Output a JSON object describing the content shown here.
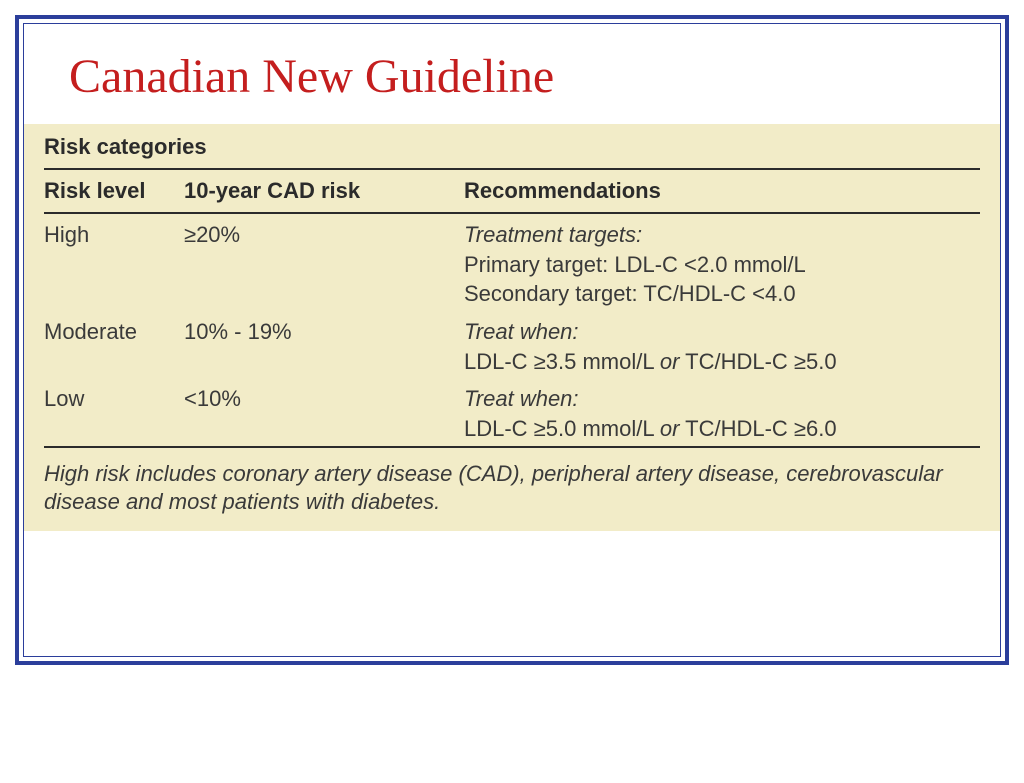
{
  "colors": {
    "border": "#2b3e9b",
    "title": "#c41e1e",
    "table_bg": "#f2ecc8",
    "text": "#3a3a3a",
    "heading": "#2b2b2b"
  },
  "title": "Canadian New Guideline",
  "section_heading": "Risk categories",
  "columns": {
    "level": "Risk level",
    "cad": "10-year CAD risk",
    "rec": "Recommendations"
  },
  "rows": [
    {
      "level": "High",
      "risk": "≥20%",
      "rec_heading": "Treatment targets:",
      "rec_line1_plain": "Primary target: LDL-C <2.0 mmol/L",
      "rec_line2_plain": "Secondary target: TC/HDL-C <4.0"
    },
    {
      "level": "Moderate",
      "risk": "10% - 19%",
      "rec_heading": "Treat when:",
      "rec_line1_before": "LDL-C ≥3.5 mmol/L ",
      "rec_line1_italic": "or",
      "rec_line1_after": " TC/HDL-C ≥5.0"
    },
    {
      "level": "Low",
      "risk": "<10%",
      "rec_heading": "Treat when:",
      "rec_line1_before": "LDL-C ≥5.0 mmol/L ",
      "rec_line1_italic": "or",
      "rec_line1_after": " TC/HDL-C ≥6.0"
    }
  ],
  "footnote": "High risk includes coronary artery disease (CAD), peripheral artery disease, cerebrovascular disease and most patients with diabetes."
}
